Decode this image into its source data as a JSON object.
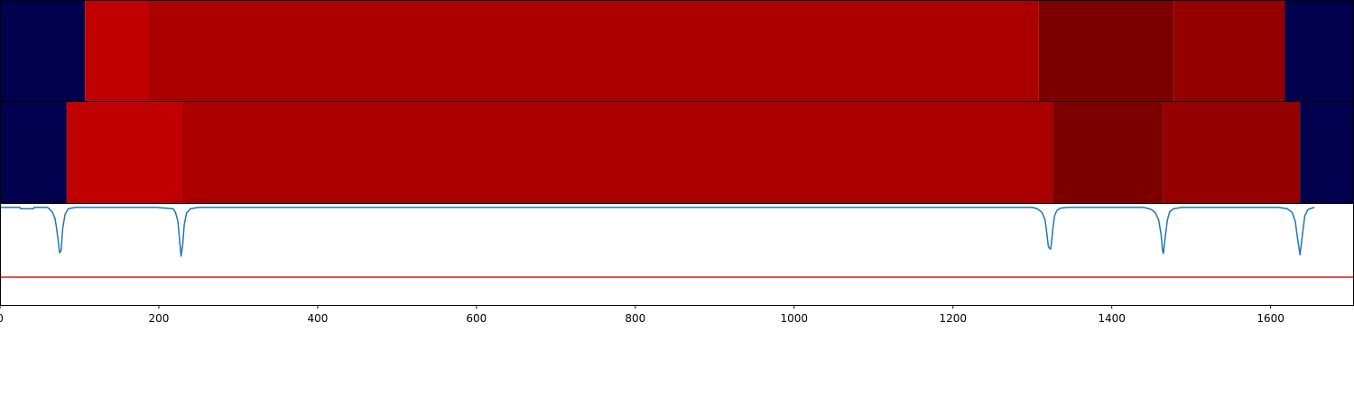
{
  "chart_data": [
    {
      "type": "heatmap",
      "panel": "segments-top",
      "xlim": [
        0,
        1705
      ],
      "series": [
        {
          "segments": [
            {
              "start": 0,
              "end": 107,
              "color": "#00004c"
            },
            {
              "start": 107,
              "end": 187,
              "color": "#c00000"
            },
            {
              "start": 187,
              "end": 1308,
              "color": "#aa0000"
            },
            {
              "start": 1308,
              "end": 1478,
              "color": "#7d0000"
            },
            {
              "start": 1478,
              "end": 1618,
              "color": "#940000"
            },
            {
              "start": 1618,
              "end": 1705,
              "color": "#00004c"
            }
          ]
        }
      ]
    },
    {
      "type": "heatmap",
      "panel": "segments-bottom",
      "xlim": [
        0,
        1705
      ],
      "series": [
        {
          "segments": [
            {
              "start": 0,
              "end": 84,
              "color": "#00004c"
            },
            {
              "start": 84,
              "end": 229,
              "color": "#c00000"
            },
            {
              "start": 229,
              "end": 1326,
              "color": "#aa0000"
            },
            {
              "start": 1326,
              "end": 1465,
              "color": "#7d0000"
            },
            {
              "start": 1465,
              "end": 1637,
              "color": "#940000"
            },
            {
              "start": 1637,
              "end": 1705,
              "color": "#00004c"
            }
          ]
        }
      ]
    },
    {
      "type": "line",
      "panel": "signal",
      "xlim": [
        0,
        1705
      ],
      "ylim": [
        -1.4,
        0.05
      ],
      "grid": false,
      "xticks": [
        0,
        200,
        400,
        600,
        800,
        1000,
        1200,
        1400,
        1600
      ],
      "xtick_labels": [
        "0",
        "200",
        "400",
        "600",
        "800",
        "1000",
        "1200",
        "1400",
        "1600"
      ],
      "threshold": {
        "y": -1.0,
        "color": "#e41a1c"
      },
      "series": [
        {
          "color": "#1f77b4",
          "x": [
            0,
            25,
            26,
            42,
            43,
            60,
            63,
            66,
            69,
            71,
            73,
            75,
            77,
            79,
            82,
            86,
            95,
            196,
            218,
            221,
            224,
            226,
            228,
            230,
            232,
            235,
            240,
            250,
            1300,
            1306,
            1312,
            1316,
            1318,
            1320,
            1321,
            1323,
            1324,
            1326,
            1328,
            1331,
            1336,
            1345,
            1440,
            1450,
            1455,
            1459,
            1462,
            1464,
            1465,
            1467,
            1470,
            1473,
            1478,
            1488,
            1610,
            1621,
            1627,
            1631,
            1634,
            1637,
            1640,
            1643,
            1647,
            1655
          ],
          "y": [
            0,
            0,
            -0.02,
            -0.02,
            0,
            0,
            -0.03,
            -0.07,
            -0.15,
            -0.28,
            -0.45,
            -0.65,
            -0.62,
            -0.3,
            -0.1,
            -0.02,
            0,
            0,
            -0.02,
            -0.07,
            -0.2,
            -0.45,
            -0.7,
            -0.55,
            -0.25,
            -0.08,
            -0.02,
            0,
            0,
            -0.02,
            -0.07,
            -0.18,
            -0.35,
            -0.55,
            -0.58,
            -0.6,
            -0.52,
            -0.28,
            -0.12,
            -0.04,
            -0.01,
            0,
            0,
            -0.03,
            -0.08,
            -0.18,
            -0.38,
            -0.63,
            -0.66,
            -0.45,
            -0.18,
            -0.06,
            -0.02,
            0,
            0,
            -0.02,
            -0.07,
            -0.2,
            -0.45,
            -0.68,
            -0.4,
            -0.12,
            -0.03,
            0
          ]
        }
      ]
    }
  ]
}
